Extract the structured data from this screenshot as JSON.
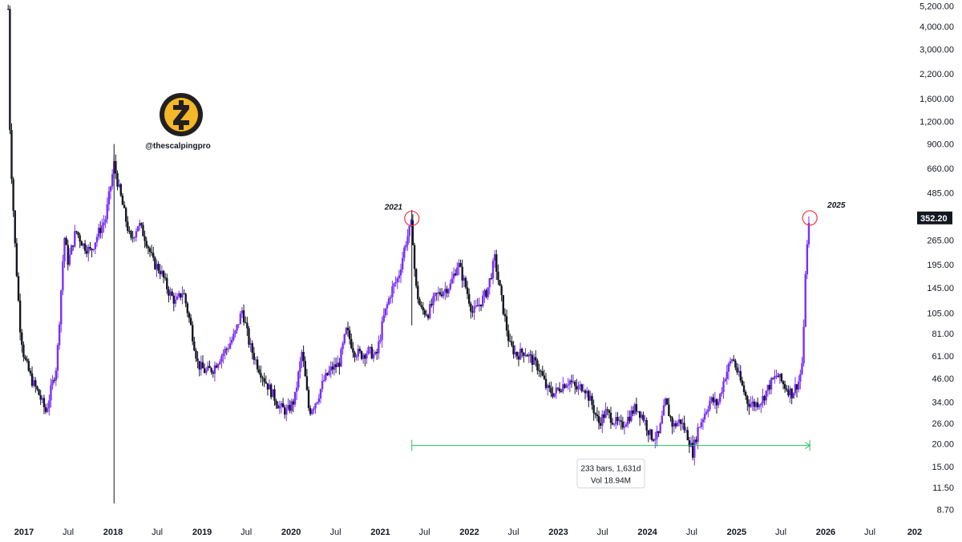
{
  "chart_data": {
    "type": "candlestick",
    "scale": "log",
    "ylim": [
      7.5,
      5600
    ],
    "y_ticks": [
      "5,200.00",
      "4,000.00",
      "3,000.00",
      "2,200.00",
      "1,600.00",
      "1,200.00",
      "900.00",
      "660.00",
      "485.00",
      "352.20",
      "265.00",
      "195.00",
      "145.00",
      "105.00",
      "81.00",
      "61.00",
      "46.00",
      "34.00",
      "26.00",
      "20.00",
      "15.00",
      "11.50",
      "8.70"
    ],
    "y_tick_values": [
      5200,
      4000,
      3000,
      2200,
      1600,
      1200,
      900,
      660,
      485,
      352.2,
      265,
      195,
      145,
      105,
      81,
      61,
      46,
      34,
      26,
      20,
      15,
      11.5,
      8.7
    ],
    "x_ticks": [
      {
        "label": "2017",
        "date": "2017-01-01",
        "year": true
      },
      {
        "label": "Jul",
        "date": "2017-07-01",
        "year": false
      },
      {
        "label": "2018",
        "date": "2018-01-01",
        "year": true
      },
      {
        "label": "Jul",
        "date": "2018-07-01",
        "year": false
      },
      {
        "label": "2019",
        "date": "2019-01-01",
        "year": true
      },
      {
        "label": "Jul",
        "date": "2019-07-01",
        "year": false
      },
      {
        "label": "2020",
        "date": "2020-01-01",
        "year": true
      },
      {
        "label": "Jul",
        "date": "2020-07-01",
        "year": false
      },
      {
        "label": "2021",
        "date": "2021-01-01",
        "year": true
      },
      {
        "label": "Jul",
        "date": "2021-07-01",
        "year": false
      },
      {
        "label": "2022",
        "date": "2022-01-01",
        "year": true
      },
      {
        "label": "Jul",
        "date": "2022-07-01",
        "year": false
      },
      {
        "label": "2023",
        "date": "2023-01-01",
        "year": true
      },
      {
        "label": "Jul",
        "date": "2023-07-01",
        "year": false
      },
      {
        "label": "2024",
        "date": "2024-01-01",
        "year": true
      },
      {
        "label": "Jul",
        "date": "2024-07-01",
        "year": false
      },
      {
        "label": "2025",
        "date": "2025-01-01",
        "year": true
      },
      {
        "label": "Jul",
        "date": "2025-07-01",
        "year": false
      },
      {
        "label": "2026",
        "date": "2026-01-01",
        "year": true
      },
      {
        "label": "Jul",
        "date": "2026-07-01",
        "year": false
      },
      {
        "label": "202",
        "date": "2027-01-01",
        "year": true
      }
    ],
    "price_path": [
      [
        "2016-10-28",
        5000
      ],
      [
        "2016-11-05",
        900
      ],
      [
        "2016-11-25",
        250
      ],
      [
        "2016-12-15",
        90
      ],
      [
        "2017-01-01",
        60
      ],
      [
        "2017-02-01",
        45
      ],
      [
        "2017-03-01",
        38
      ],
      [
        "2017-04-01",
        30
      ],
      [
        "2017-05-15",
        55
      ],
      [
        "2017-06-15",
        280
      ],
      [
        "2017-07-01",
        200
      ],
      [
        "2017-08-01",
        300
      ],
      [
        "2017-09-01",
        250
      ],
      [
        "2017-10-01",
        230
      ],
      [
        "2017-11-01",
        290
      ],
      [
        "2017-12-01",
        350
      ],
      [
        "2018-01-05",
        700
      ],
      [
        "2018-01-20",
        550
      ],
      [
        "2018-02-15",
        380
      ],
      [
        "2018-03-15",
        260
      ],
      [
        "2018-04-15",
        330
      ],
      [
        "2018-05-15",
        270
      ],
      [
        "2018-06-15",
        200
      ],
      [
        "2018-07-15",
        180
      ],
      [
        "2018-08-15",
        140
      ],
      [
        "2018-09-15",
        120
      ],
      [
        "2018-10-15",
        140
      ],
      [
        "2018-11-15",
        90
      ],
      [
        "2018-12-15",
        55
      ],
      [
        "2019-01-15",
        50
      ],
      [
        "2019-02-15",
        52
      ],
      [
        "2019-03-15",
        60
      ],
      [
        "2019-04-15",
        68
      ],
      [
        "2019-05-15",
        80
      ],
      [
        "2019-06-15",
        110
      ],
      [
        "2019-07-15",
        70
      ],
      [
        "2019-08-15",
        55
      ],
      [
        "2019-09-15",
        45
      ],
      [
        "2019-10-15",
        38
      ],
      [
        "2019-11-15",
        32
      ],
      [
        "2019-12-15",
        30
      ],
      [
        "2020-01-15",
        35
      ],
      [
        "2020-02-15",
        65
      ],
      [
        "2020-03-15",
        30
      ],
      [
        "2020-04-15",
        35
      ],
      [
        "2020-05-15",
        45
      ],
      [
        "2020-06-15",
        52
      ],
      [
        "2020-07-15",
        55
      ],
      [
        "2020-08-15",
        85
      ],
      [
        "2020-09-15",
        65
      ],
      [
        "2020-10-15",
        62
      ],
      [
        "2020-11-15",
        65
      ],
      [
        "2020-12-15",
        60
      ],
      [
        "2021-01-15",
        100
      ],
      [
        "2021-02-15",
        140
      ],
      [
        "2021-03-15",
        165
      ],
      [
        "2021-04-15",
        260
      ],
      [
        "2021-05-10",
        330
      ],
      [
        "2021-05-25",
        150
      ],
      [
        "2021-06-15",
        110
      ],
      [
        "2021-07-15",
        105
      ],
      [
        "2021-08-15",
        130
      ],
      [
        "2021-09-15",
        140
      ],
      [
        "2021-10-15",
        150
      ],
      [
        "2021-11-15",
        200
      ],
      [
        "2021-12-15",
        150
      ],
      [
        "2022-01-15",
        105
      ],
      [
        "2022-02-15",
        120
      ],
      [
        "2022-03-15",
        140
      ],
      [
        "2022-04-15",
        210
      ],
      [
        "2022-05-15",
        120
      ],
      [
        "2022-06-15",
        70
      ],
      [
        "2022-07-15",
        62
      ],
      [
        "2022-08-15",
        65
      ],
      [
        "2022-09-15",
        58
      ],
      [
        "2022-10-15",
        52
      ],
      [
        "2022-11-15",
        40
      ],
      [
        "2022-12-15",
        38
      ],
      [
        "2023-01-15",
        42
      ],
      [
        "2023-02-15",
        45
      ],
      [
        "2023-03-15",
        40
      ],
      [
        "2023-04-15",
        42
      ],
      [
        "2023-05-15",
        34
      ],
      [
        "2023-06-15",
        26
      ],
      [
        "2023-07-15",
        30
      ],
      [
        "2023-08-15",
        27
      ],
      [
        "2023-09-15",
        25
      ],
      [
        "2023-10-15",
        28
      ],
      [
        "2023-11-15",
        32
      ],
      [
        "2023-12-15",
        28
      ],
      [
        "2024-01-15",
        22
      ],
      [
        "2024-02-15",
        22
      ],
      [
        "2024-03-15",
        34
      ],
      [
        "2024-04-15",
        25
      ],
      [
        "2024-05-15",
        27
      ],
      [
        "2024-06-15",
        22
      ],
      [
        "2024-07-05",
        18
      ],
      [
        "2024-07-25",
        24
      ],
      [
        "2024-08-15",
        28
      ],
      [
        "2024-09-15",
        35
      ],
      [
        "2024-10-15",
        33
      ],
      [
        "2024-11-15",
        48
      ],
      [
        "2024-12-15",
        60
      ],
      [
        "2025-01-15",
        45
      ],
      [
        "2025-02-15",
        34
      ],
      [
        "2025-03-15",
        33
      ],
      [
        "2025-04-15",
        35
      ],
      [
        "2025-05-15",
        42
      ],
      [
        "2025-06-15",
        48
      ],
      [
        "2025-07-15",
        42
      ],
      [
        "2025-08-15",
        38
      ],
      [
        "2025-09-15",
        45
      ],
      [
        "2025-09-30",
        60
      ],
      [
        "2025-10-10",
        180
      ],
      [
        "2025-10-20",
        280
      ],
      [
        "2025-10-28",
        352.2
      ]
    ],
    "outliers": [
      {
        "date": "2018-01-05",
        "low": 9.4,
        "high": 900
      },
      {
        "date": "2021-05-10",
        "low": 90,
        "high": 390
      }
    ],
    "current_price": "352.20",
    "annotations": {
      "peak_2021_label": "2021",
      "peak_2021_date": "2021-05-10",
      "peak_2021_price": 350,
      "peak_2025_label": "2025",
      "peak_2025_date": "2025-10-28",
      "peak_2025_price": 352.2
    },
    "range_measure": {
      "start_date": "2021-05-10",
      "end_date": "2025-10-28",
      "price": 19.6,
      "bars_text": "233 bars, 1,631d",
      "vol_text": "Vol 18.94M"
    },
    "watermark_handle": "@thescalpingpro",
    "colors": {
      "up": "#7b2ff7",
      "down": "#131722",
      "measure": "#22c55e",
      "circle": "#f23645",
      "price_tag": "#131722"
    }
  }
}
